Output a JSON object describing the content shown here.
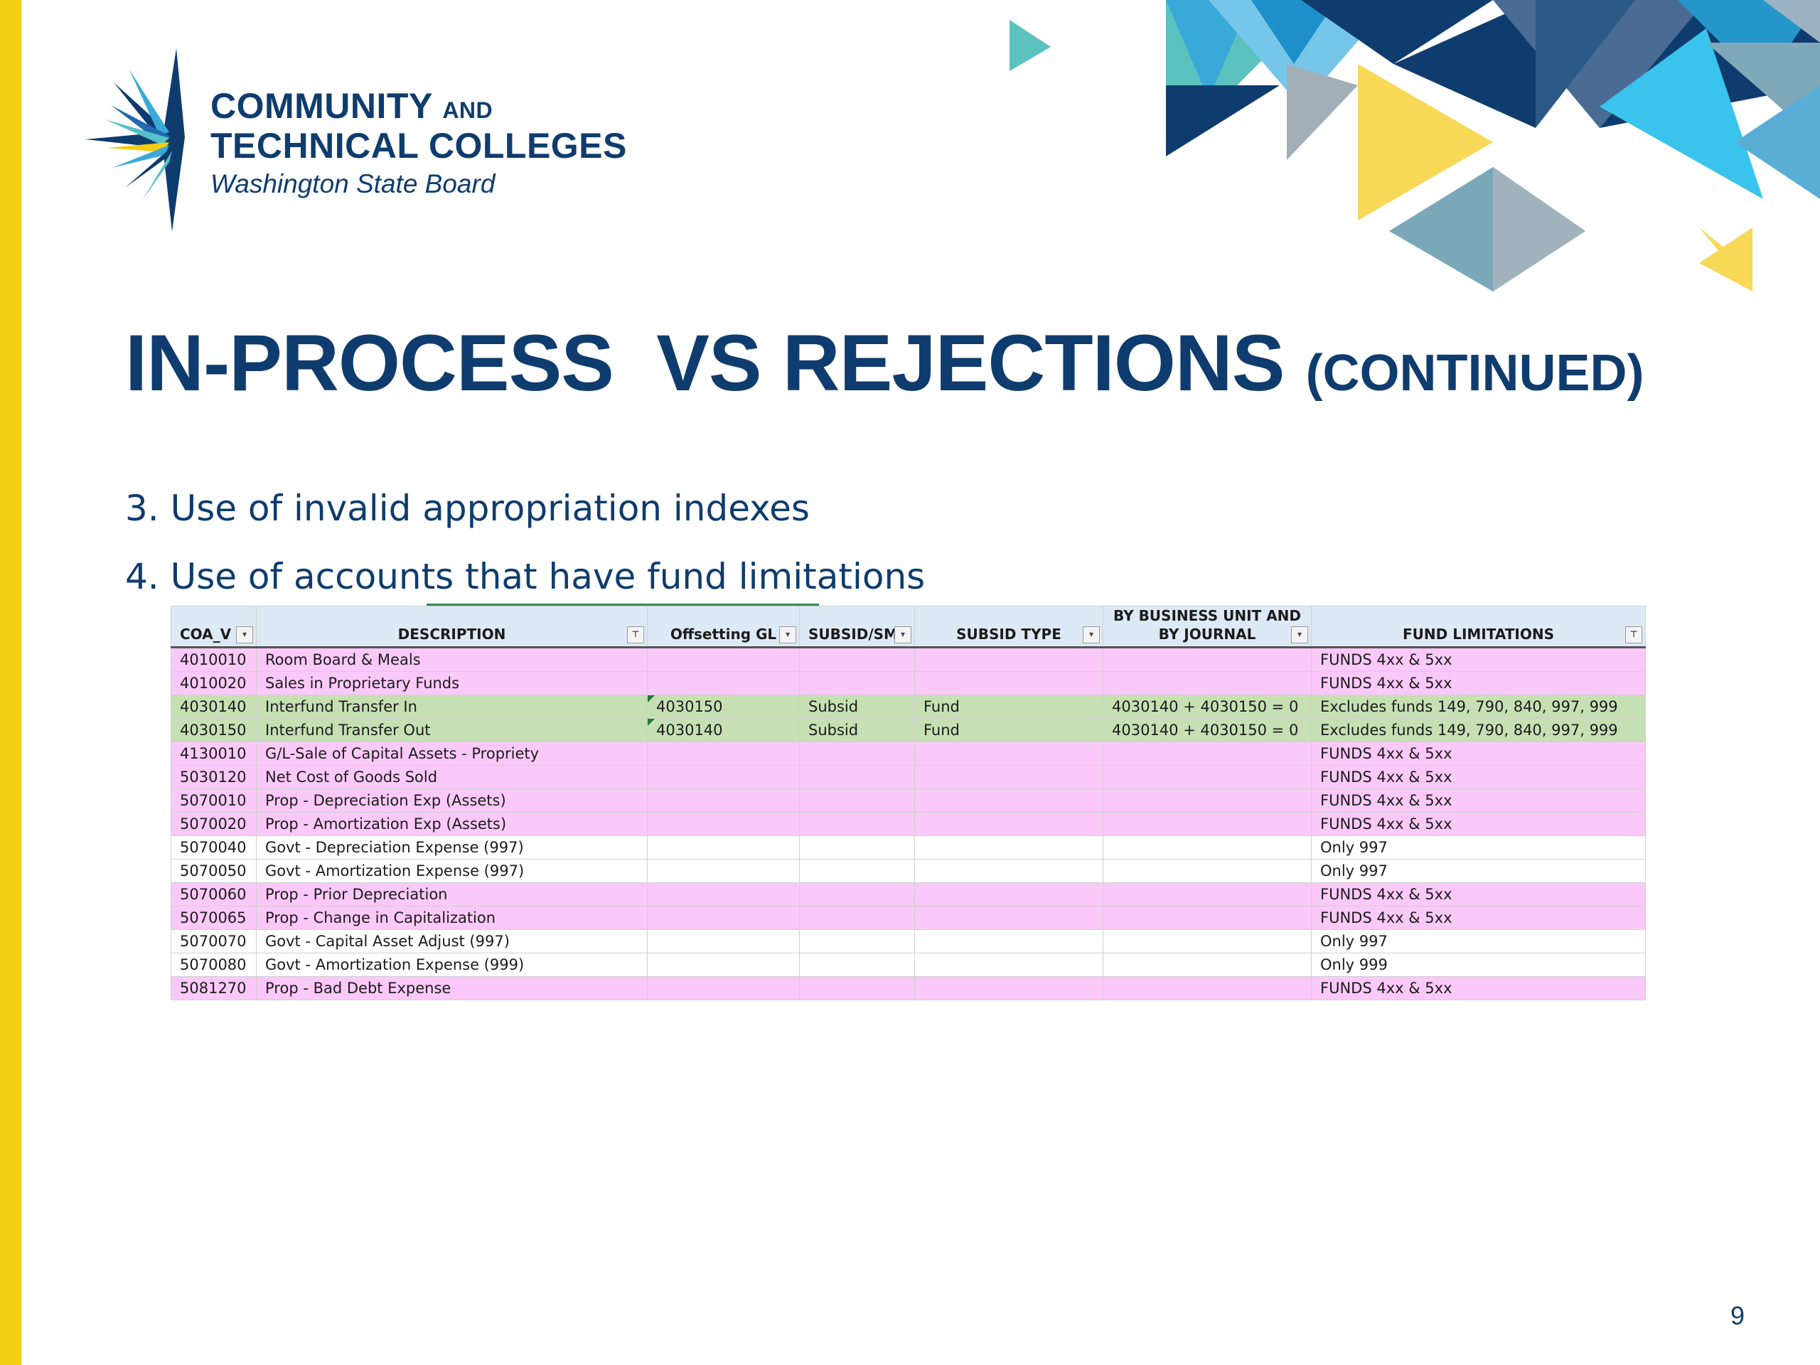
{
  "logo": {
    "line1_main": "COMMUNITY",
    "line1_small": "AND",
    "line2": "TECHNICAL COLLEGES",
    "line3": "Washington State Board"
  },
  "title": {
    "main": "IN-PROCESS  VS REJECTIONS",
    "sub": "(CONTINUED)"
  },
  "bullets": [
    "3. Use of invalid appropriation indexes",
    "4. Use of accounts that have fund limitations"
  ],
  "table": {
    "headers": {
      "coa": "COA_V",
      "description": "DESCRIPTION",
      "offsetting": "Offsetting GL",
      "subsid_sm": "SUBSID/SM",
      "subsid_type": "SUBSID TYPE",
      "bu_line1": "BY BUSINESS UNIT AND",
      "bu_line2": "BY JOURNAL",
      "fund_limitations": "FUND LIMITATIONS"
    },
    "rows": [
      {
        "coa": "4010010",
        "desc": "Room Board & Meals",
        "offs": "",
        "subsid": "",
        "type": "",
        "bu": "",
        "fund": "FUNDS 4xx & 5xx",
        "color": "pink"
      },
      {
        "coa": "4010020",
        "desc": "Sales in Proprietary Funds",
        "offs": "",
        "subsid": "",
        "type": "",
        "bu": "",
        "fund": "FUNDS 4xx & 5xx",
        "color": "pink"
      },
      {
        "coa": "4030140",
        "desc": "Interfund Transfer In",
        "offs": "4030150",
        "subsid": "Subsid",
        "type": "Fund",
        "bu": "4030140 + 4030150 = 0",
        "fund": "Excludes funds 149, 790, 840, 997, 999",
        "color": "green"
      },
      {
        "coa": "4030150",
        "desc": "Interfund Transfer Out",
        "offs": "4030140",
        "subsid": "Subsid",
        "type": "Fund",
        "bu": "4030140 + 4030150 = 0",
        "fund": "Excludes funds 149, 790, 840, 997, 999",
        "color": "green"
      },
      {
        "coa": "4130010",
        "desc": "G/L-Sale of Capital Assets - Propriety",
        "offs": "",
        "subsid": "",
        "type": "",
        "bu": "",
        "fund": "FUNDS 4xx & 5xx",
        "color": "pink"
      },
      {
        "coa": "5030120",
        "desc": "Net Cost of Goods Sold",
        "offs": "",
        "subsid": "",
        "type": "",
        "bu": "",
        "fund": "FUNDS 4xx & 5xx",
        "color": "pink"
      },
      {
        "coa": "5070010",
        "desc": "Prop - Depreciation Exp (Assets)",
        "offs": "",
        "subsid": "",
        "type": "",
        "bu": "",
        "fund": "FUNDS 4xx & 5xx",
        "color": "pink"
      },
      {
        "coa": "5070020",
        "desc": "Prop - Amortization Exp (Assets)",
        "offs": "",
        "subsid": "",
        "type": "",
        "bu": "",
        "fund": "FUNDS 4xx & 5xx",
        "color": "pink"
      },
      {
        "coa": "5070040",
        "desc": "Govt - Depreciation Expense (997)",
        "offs": "",
        "subsid": "",
        "type": "",
        "bu": "",
        "fund": "Only 997",
        "color": "white"
      },
      {
        "coa": "5070050",
        "desc": "Govt - Amortization Expense (997)",
        "offs": "",
        "subsid": "",
        "type": "",
        "bu": "",
        "fund": "Only 997",
        "color": "white"
      },
      {
        "coa": "5070060",
        "desc": "Prop - Prior Depreciation",
        "offs": "",
        "subsid": "",
        "type": "",
        "bu": "",
        "fund": "FUNDS 4xx & 5xx",
        "color": "pink"
      },
      {
        "coa": "5070065",
        "desc": "Prop - Change in Capitalization",
        "offs": "",
        "subsid": "",
        "type": "",
        "bu": "",
        "fund": "FUNDS 4xx & 5xx",
        "color": "pink"
      },
      {
        "coa": "5070070",
        "desc": "Govt - Capital Asset Adjust (997)",
        "offs": "",
        "subsid": "",
        "type": "",
        "bu": "",
        "fund": "Only 997",
        "color": "white"
      },
      {
        "coa": "5070080",
        "desc": "Govt - Amortization Expense (999)",
        "offs": "",
        "subsid": "",
        "type": "",
        "bu": "",
        "fund": "Only 999",
        "color": "white"
      },
      {
        "coa": "5081270",
        "desc": "Prop - Bad Debt Expense",
        "offs": "",
        "subsid": "",
        "type": "",
        "bu": "",
        "fund": "FUNDS 4xx & 5xx",
        "color": "pink"
      }
    ]
  },
  "page_number": "9",
  "colors": {
    "navy": "#0f3c6e",
    "yellow_bar": "#f2cd13",
    "row_pink": "#fbc9f9",
    "row_green": "#c6e0b4",
    "header_blue": "#dde9f5"
  }
}
